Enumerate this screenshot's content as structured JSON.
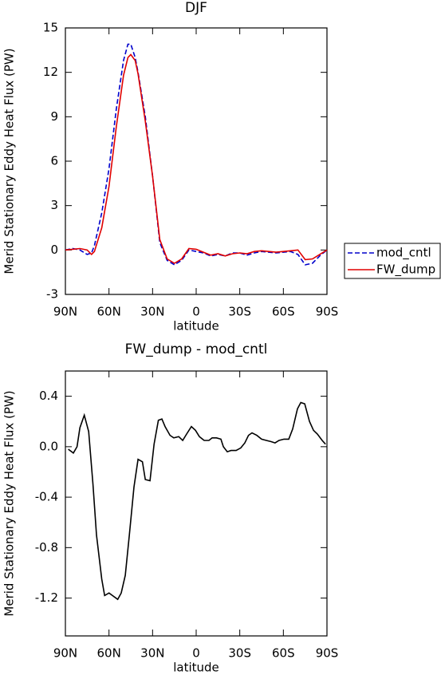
{
  "chart_data": [
    {
      "type": "line",
      "title": "DJF",
      "xlabel": "latitude",
      "ylabel": "Merid Stationary Eddy Heat Flux (PW)",
      "x": [
        90,
        85,
        80,
        75,
        72,
        70,
        65,
        60,
        55,
        50,
        47,
        45,
        42,
        40,
        35,
        30,
        25,
        20,
        15,
        10,
        5,
        0,
        -5,
        -10,
        -15,
        -20,
        -25,
        -30,
        -35,
        -40,
        -45,
        -50,
        -55,
        -60,
        -65,
        -70,
        -75,
        -80,
        -85,
        -90
      ],
      "series": [
        {
          "name": "mod_cntl",
          "color": "#0000cc",
          "linestyle": "dashed",
          "values": [
            0,
            0.1,
            0,
            -0.3,
            -0.2,
            0.3,
            2.5,
            5.5,
            9.5,
            12.8,
            13.9,
            13.9,
            13,
            12,
            9,
            5,
            0.5,
            -0.7,
            -1,
            -0.7,
            0,
            -0.1,
            -0.2,
            -0.4,
            -0.3,
            -0.4,
            -0.2,
            -0.2,
            -0.35,
            -0.2,
            -0.1,
            -0.15,
            -0.2,
            -0.15,
            -0.1,
            -0.3,
            -1,
            -0.9,
            -0.4,
            0
          ]
        },
        {
          "name": "FW_dump",
          "color": "#e00000",
          "linestyle": "solid",
          "values": [
            0,
            0.05,
            0.1,
            0,
            -0.3,
            -0.1,
            1.5,
            4.3,
            8.3,
            11.8,
            13,
            13.2,
            12.8,
            11.9,
            8.7,
            5,
            0.7,
            -0.6,
            -0.9,
            -0.6,
            0.1,
            0.05,
            -0.15,
            -0.35,
            -0.25,
            -0.4,
            -0.25,
            -0.2,
            -0.25,
            -0.1,
            -0.05,
            -0.1,
            -0.15,
            -0.1,
            -0.05,
            0,
            -0.65,
            -0.6,
            -0.3,
            0
          ]
        }
      ],
      "xlim": [
        90,
        -90
      ],
      "xticks": [
        {
          "value": 90,
          "label": "90N"
        },
        {
          "value": 60,
          "label": "60N"
        },
        {
          "value": 30,
          "label": "30N"
        },
        0,
        {
          "value": -30,
          "label": "30S"
        },
        {
          "value": -60,
          "label": "60S"
        },
        {
          "value": -90,
          "label": "90S"
        }
      ],
      "ylim": [
        -3,
        15
      ],
      "yticks": [
        -3,
        0,
        3,
        6,
        9,
        12,
        15
      ],
      "legend": "right"
    },
    {
      "type": "line",
      "title": "FW_dump - mod_cntl",
      "xlabel": "latitude",
      "ylabel": "Merid Stationary Eddy Heat Flux (PW)",
      "x": [
        88,
        84.5,
        82,
        80,
        77,
        74,
        71,
        68.6,
        65,
        63,
        60,
        57.6,
        54,
        51.6,
        48.8,
        46,
        42.8,
        40,
        37,
        35,
        31.8,
        29,
        26,
        23.6,
        21.4,
        18,
        15.4,
        12,
        9.3,
        6.6,
        3.3,
        0.5,
        -2.2,
        -5.5,
        -8.8,
        -11,
        -14,
        -17,
        -18.7,
        -21.4,
        -24,
        -27.5,
        -30.7,
        -33.5,
        -36,
        -38.4,
        -41.7,
        -45,
        -48.3,
        -51.6,
        -54.3,
        -57,
        -60.4,
        -63.7,
        -66.4,
        -69.7,
        -72,
        -74.7,
        -78,
        -80.7,
        -83.4,
        -86.7,
        -89
      ],
      "series": [
        {
          "name": null,
          "color": "#000000",
          "linestyle": "solid",
          "values": [
            -0.02,
            -0.05,
            0,
            0.15,
            0.25,
            0.12,
            -0.3,
            -0.7,
            -1.05,
            -1.18,
            -1.16,
            -1.18,
            -1.21,
            -1.16,
            -1.02,
            -0.7,
            -0.32,
            -0.1,
            -0.12,
            -0.26,
            -0.27,
            0.02,
            0.21,
            0.22,
            0.16,
            0.09,
            0.07,
            0.08,
            0.05,
            0.1,
            0.16,
            0.13,
            0.08,
            0.05,
            0.05,
            0.07,
            0.07,
            0.06,
            0,
            -0.04,
            -0.03,
            -0.03,
            -0.01,
            0.03,
            0.09,
            0.11,
            0.09,
            0.06,
            0.05,
            0.04,
            0.03,
            0.05,
            0.06,
            0.06,
            0.14,
            0.3,
            0.35,
            0.34,
            0.2,
            0.13,
            0.1,
            0.05,
            0.02
          ]
        }
      ],
      "xlim": [
        90,
        -90
      ],
      "xticks": [
        {
          "value": 90,
          "label": "90N"
        },
        {
          "value": 60,
          "label": "60N"
        },
        {
          "value": 30,
          "label": "30N"
        },
        0,
        {
          "value": -30,
          "label": "30S"
        },
        {
          "value": -60,
          "label": "60S"
        },
        {
          "value": -90,
          "label": "90S"
        }
      ],
      "ylim": [
        -1.5,
        0.6
      ],
      "yticks": [
        -1.2,
        -0.8,
        -0.4,
        {
          "value": 0,
          "label": "0.0"
        },
        0.4
      ]
    }
  ]
}
